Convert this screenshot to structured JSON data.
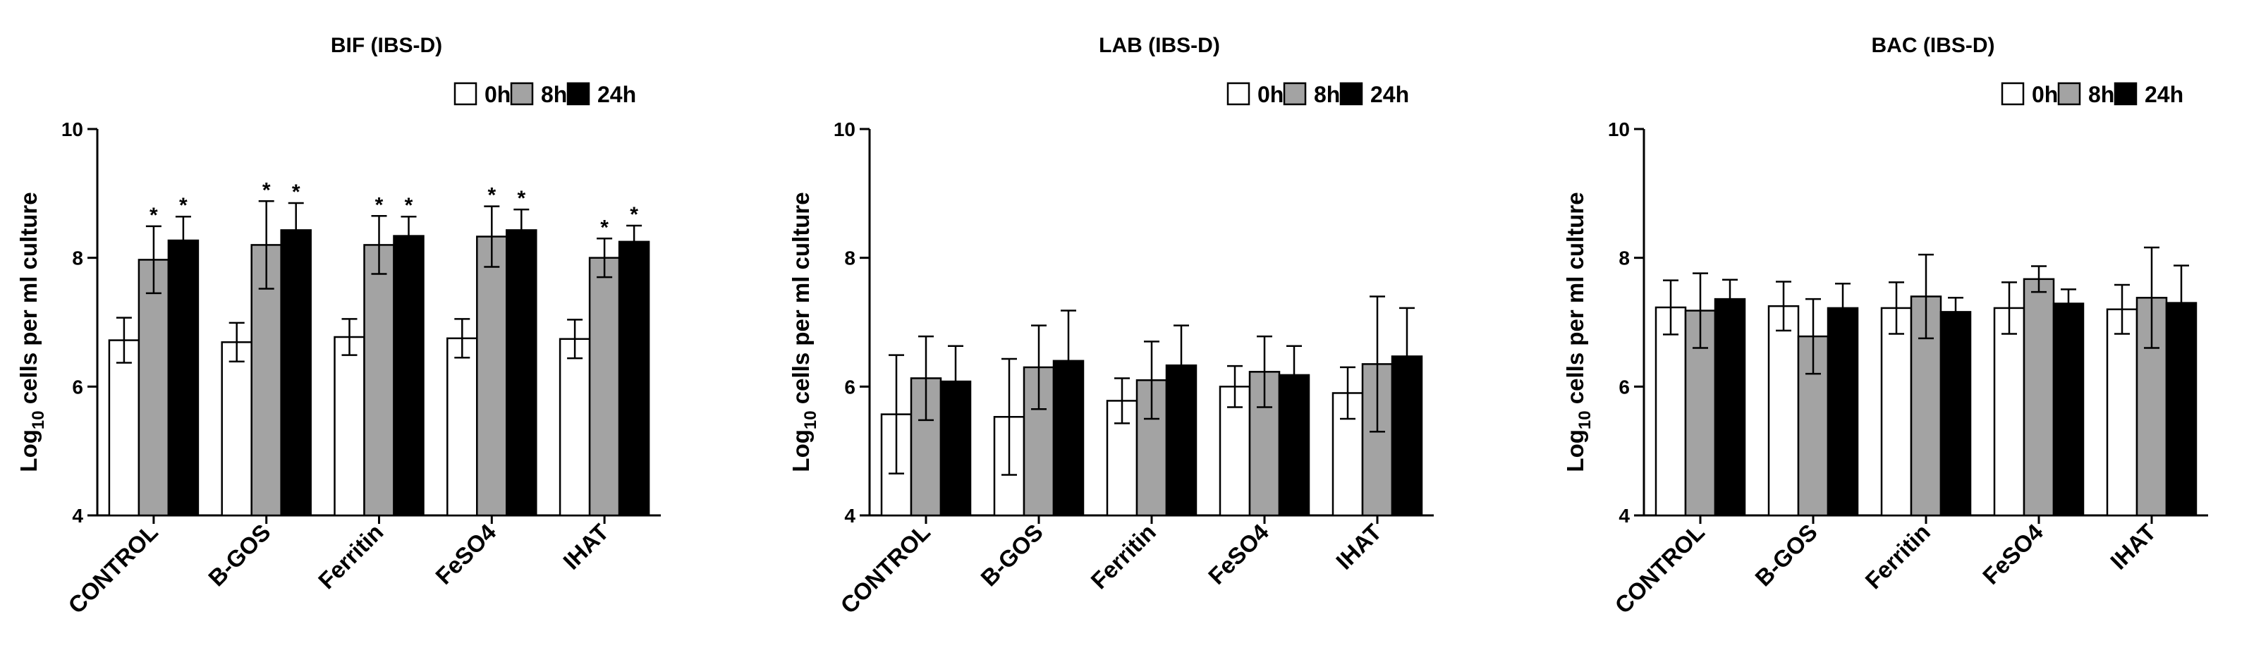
{
  "chart_data": [
    {
      "type": "bar",
      "title": "BIF (IBS-D)",
      "ylabel_prefix": "Log",
      "ylabel_sub": "10",
      "ylabel_rest": " cells per ml culture",
      "xlabel": "",
      "ylim": [
        4,
        10
      ],
      "yticks": [
        "4",
        "6",
        "8",
        "10"
      ],
      "categories": [
        "CONTROL",
        "B-GOS",
        "Ferritin",
        "FeSO4",
        "IHAT"
      ],
      "legend_position": "top-right",
      "series": [
        {
          "name": "0h",
          "color": "#ffffff",
          "values": [
            6.72,
            6.69,
            6.77,
            6.75,
            6.74
          ],
          "errors": [
            0.35,
            0.3,
            0.28,
            0.3,
            0.3
          ],
          "annotations": [
            "",
            "",
            "",
            "",
            ""
          ]
        },
        {
          "name": "8h",
          "color": "#a3a3a3",
          "values": [
            7.97,
            8.2,
            8.2,
            8.33,
            8.0
          ],
          "errors": [
            0.52,
            0.68,
            0.45,
            0.47,
            0.3
          ],
          "annotations": [
            "*",
            "*",
            "*",
            "*",
            "*"
          ]
        },
        {
          "name": "24h",
          "color": "#000000",
          "values": [
            8.27,
            8.43,
            8.34,
            8.43,
            8.25
          ],
          "errors": [
            0.37,
            0.42,
            0.3,
            0.32,
            0.25
          ],
          "annotations": [
            "*",
            "*",
            "*",
            "*",
            "*"
          ]
        }
      ]
    },
    {
      "type": "bar",
      "title": "LAB (IBS-D)",
      "ylabel_prefix": "Log",
      "ylabel_sub": "10",
      "ylabel_rest": " cells per ml culture",
      "xlabel": "",
      "ylim": [
        4,
        10
      ],
      "yticks": [
        "4",
        "6",
        "8",
        "10"
      ],
      "categories": [
        "CONTROL",
        "B-GOS",
        "Ferritin",
        "FeSO4",
        "IHAT"
      ],
      "legend_position": "top-right",
      "series": [
        {
          "name": "0h",
          "color": "#ffffff",
          "values": [
            5.57,
            5.53,
            5.78,
            6.0,
            5.9
          ],
          "errors": [
            0.92,
            0.9,
            0.35,
            0.32,
            0.4
          ],
          "annotations": [
            "",
            "",
            "",
            "",
            ""
          ]
        },
        {
          "name": "8h",
          "color": "#a3a3a3",
          "values": [
            6.13,
            6.3,
            6.1,
            6.23,
            6.35
          ],
          "errors": [
            0.65,
            0.65,
            0.6,
            0.55,
            1.05
          ],
          "annotations": [
            "",
            "",
            "",
            "",
            ""
          ]
        },
        {
          "name": "24h",
          "color": "#000000",
          "values": [
            6.08,
            6.4,
            6.33,
            6.18,
            6.47
          ],
          "errors": [
            0.55,
            0.78,
            0.62,
            0.45,
            0.75
          ],
          "annotations": [
            "",
            "",
            "",
            "",
            ""
          ]
        }
      ]
    },
    {
      "type": "bar",
      "title": "BAC (IBS-D)",
      "ylabel_prefix": "Log",
      "ylabel_sub": "10",
      "ylabel_rest": " cells per ml culture",
      "xlabel": "",
      "ylim": [
        4,
        10
      ],
      "yticks": [
        "4",
        "6",
        "8",
        "10"
      ],
      "categories": [
        "CONTROL",
        "B-GOS",
        "Ferritin",
        "FeSO4",
        "IHAT"
      ],
      "legend_position": "top-right",
      "series": [
        {
          "name": "0h",
          "color": "#ffffff",
          "values": [
            7.23,
            7.25,
            7.22,
            7.22,
            7.2
          ],
          "errors": [
            0.42,
            0.38,
            0.4,
            0.4,
            0.38
          ],
          "annotations": [
            "",
            "",
            "",
            "",
            ""
          ]
        },
        {
          "name": "8h",
          "color": "#a3a3a3",
          "values": [
            7.18,
            6.78,
            7.4,
            7.67,
            7.38
          ],
          "errors": [
            0.58,
            0.58,
            0.65,
            0.2,
            0.78
          ],
          "annotations": [
            "",
            "",
            "",
            "",
            ""
          ]
        },
        {
          "name": "24h",
          "color": "#000000",
          "values": [
            7.36,
            7.22,
            7.16,
            7.29,
            7.3
          ],
          "errors": [
            0.3,
            0.38,
            0.22,
            0.22,
            0.58
          ],
          "annotations": [
            "",
            "",
            "",
            "",
            ""
          ]
        }
      ]
    }
  ]
}
